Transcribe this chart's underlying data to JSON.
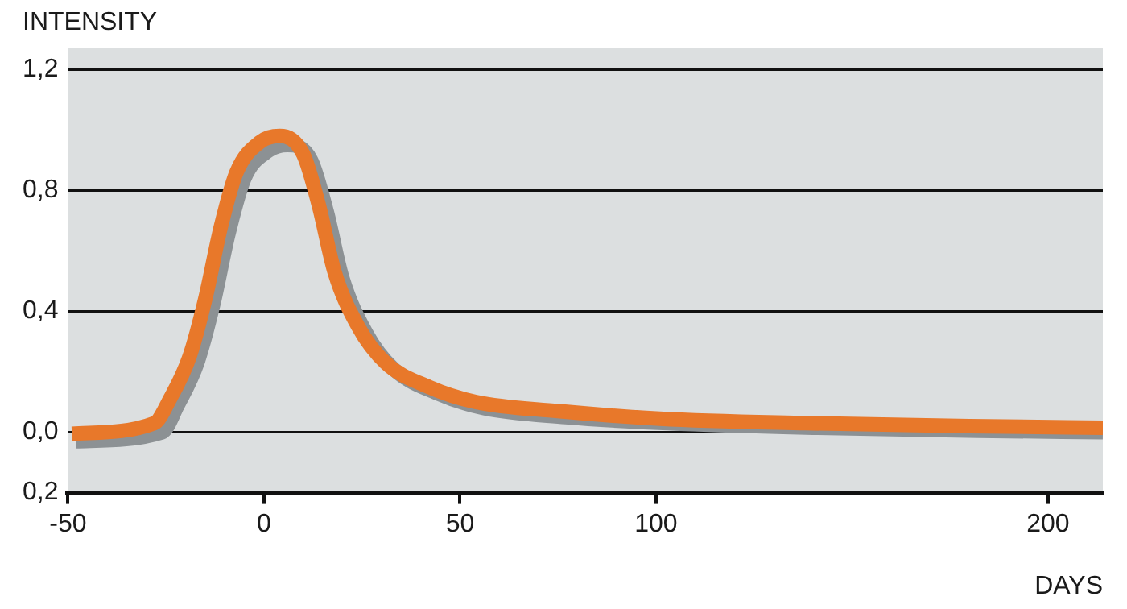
{
  "chart_data": {
    "type": "line",
    "xlabel": "DAYS",
    "ylabel": "INTENSITY",
    "xlim": [
      -50,
      214
    ],
    "xticks": [
      -50,
      0,
      50,
      100,
      200
    ],
    "ylim": [
      -0.2,
      1.27
    ],
    "yticks": [
      {
        "value": -0.2,
        "label": "0,2"
      },
      {
        "value": 0,
        "label": "0,0"
      },
      {
        "value": 0.4,
        "label": "0,4"
      },
      {
        "value": 0.8,
        "label": "0,8"
      },
      {
        "value": 1.2,
        "label": "1,2"
      }
    ],
    "grid": "y",
    "legend": false,
    "marker": "none",
    "line_style": "solid",
    "series": [
      {
        "color": "#8c9194",
        "x": [
          -48,
          -26,
          -22,
          -17,
          -13,
          -9,
          -5,
          1,
          6,
          12,
          16,
          20,
          26,
          33,
          44,
          56,
          77,
          103,
          140,
          182,
          214
        ],
        "values": [
          -0.03,
          0.0,
          0.09,
          0.23,
          0.42,
          0.66,
          0.84,
          0.93,
          0.95,
          0.9,
          0.73,
          0.51,
          0.33,
          0.21,
          0.13,
          0.08,
          0.05,
          0.03,
          0.015,
          0.005,
          0.0
        ]
      },
      {
        "color": "#e8782a",
        "x": [
          -49,
          -28,
          -24,
          -19,
          -15,
          -11,
          -7,
          -1,
          4,
          10,
          14,
          18,
          24,
          31,
          42,
          54,
          75,
          101,
          138,
          180,
          214
        ],
        "values": [
          -0.005,
          0.03,
          0.11,
          0.25,
          0.44,
          0.68,
          0.86,
          0.96,
          0.98,
          0.92,
          0.75,
          0.53,
          0.35,
          0.23,
          0.15,
          0.1,
          0.07,
          0.045,
          0.03,
          0.02,
          0.015
        ]
      }
    ]
  }
}
